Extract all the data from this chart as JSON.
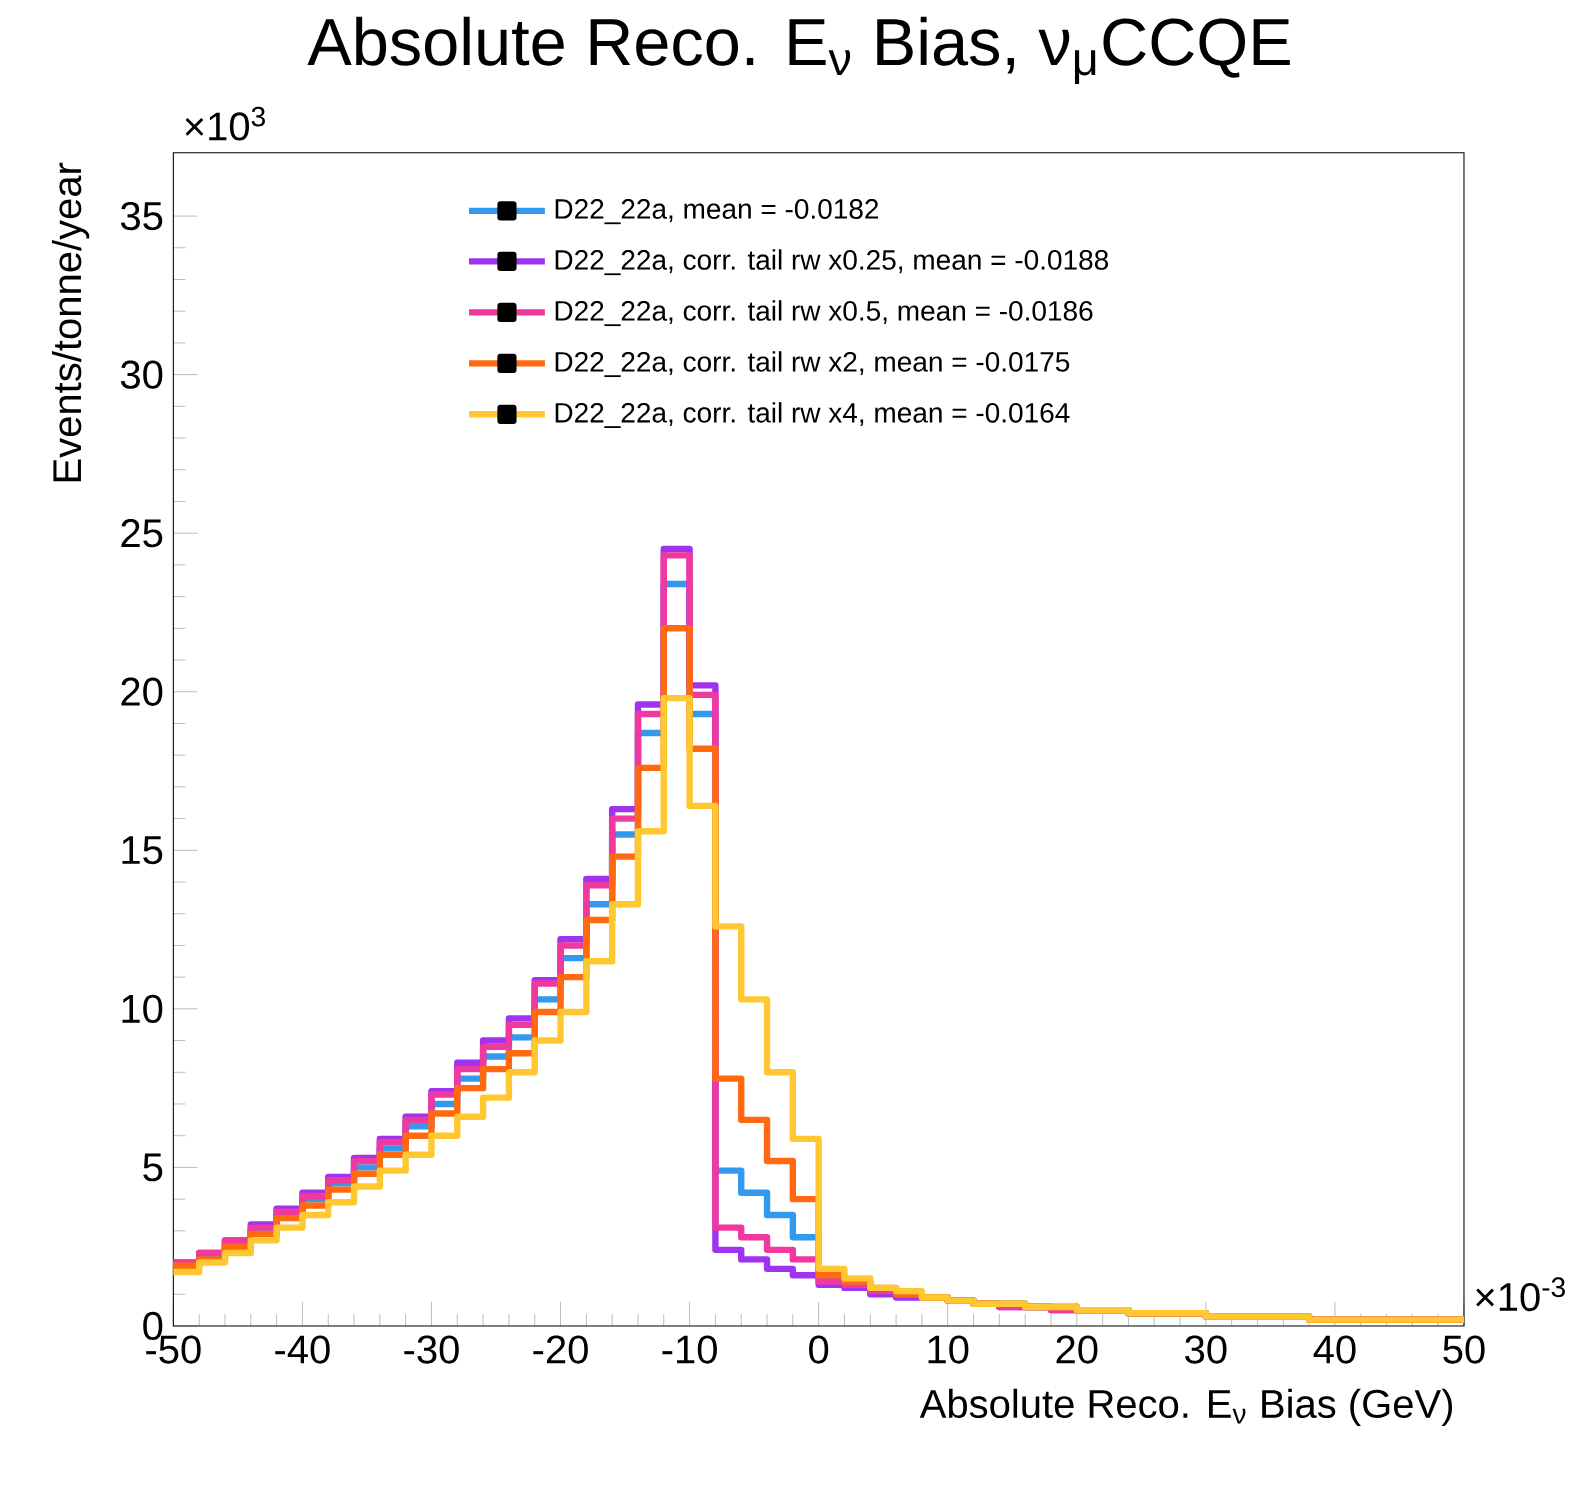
{
  "chart_data": {
    "type": "histogram",
    "title": "Absolute Reco. E$_{ν}$ Bias, ν$_{μ}$CCQE",
    "xlabel": "Absolute Reco. E$_{ν}$ Bias (GeV)",
    "ylabel": "Events/tonne/year",
    "annotations": [
      "×10$^{3}$",
      "×10$^{-3}$"
    ],
    "bins": [
      -50,
      -48,
      -46,
      -44,
      -42,
      -40,
      -38,
      -36,
      -34,
      -32,
      -30,
      -28,
      -26,
      -24,
      -22,
      -20,
      -18,
      -16,
      -14,
      -12,
      -10,
      -8,
      -6,
      -4,
      -2,
      0,
      2,
      4,
      6,
      8,
      10,
      12,
      14,
      16,
      18,
      20,
      22,
      24,
      26,
      28,
      30,
      32,
      34,
      36,
      38,
      40,
      42,
      44,
      46,
      48,
      50
    ],
    "series": [
      {
        "name": "D22_22a, mean = -0.0182",
        "color": "#3399ee",
        "values": [
          1.9,
          2.2,
          2.6,
          3.0,
          3.5,
          4.0,
          4.5,
          5.0,
          5.6,
          6.3,
          7.0,
          7.8,
          8.5,
          9.1,
          10.3,
          11.6,
          13.3,
          15.5,
          18.7,
          23.4,
          19.3,
          4.9,
          4.2,
          3.5,
          2.8,
          1.5,
          1.3,
          1.1,
          1.0,
          0.9,
          0.8,
          0.7,
          0.7,
          0.6,
          0.6,
          0.5,
          0.5,
          0.4,
          0.4,
          0.4,
          0.3,
          0.3,
          0.3,
          0.3,
          0.2,
          0.2,
          0.2,
          0.2,
          0.2,
          0.2
        ]
      },
      {
        "name": "D22_22a, corr. tail rw x0.25, mean = -0.0188",
        "color": "#a033f0",
        "values": [
          2.0,
          2.3,
          2.7,
          3.2,
          3.7,
          4.2,
          4.7,
          5.3,
          5.9,
          6.6,
          7.4,
          8.3,
          9.0,
          9.7,
          10.9,
          12.2,
          14.1,
          16.3,
          19.6,
          24.5,
          20.2,
          2.4,
          2.1,
          1.8,
          1.6,
          1.3,
          1.2,
          1.0,
          0.9,
          0.9,
          0.8,
          0.7,
          0.6,
          0.6,
          0.5,
          0.5,
          0.5,
          0.4,
          0.4,
          0.4,
          0.3,
          0.3,
          0.3,
          0.3,
          0.2,
          0.2,
          0.2,
          0.2,
          0.2,
          0.2
        ]
      },
      {
        "name": "D22_22a, corr. tail rw x0.5, mean = -0.0186",
        "color": "#f0399f",
        "values": [
          2.0,
          2.3,
          2.7,
          3.1,
          3.6,
          4.1,
          4.6,
          5.2,
          5.8,
          6.5,
          7.3,
          8.1,
          8.8,
          9.5,
          10.8,
          12.0,
          13.9,
          16.0,
          19.3,
          24.3,
          19.9,
          3.1,
          2.8,
          2.4,
          2.1,
          1.4,
          1.3,
          1.1,
          1.0,
          0.9,
          0.8,
          0.7,
          0.6,
          0.6,
          0.5,
          0.5,
          0.5,
          0.4,
          0.4,
          0.4,
          0.3,
          0.3,
          0.3,
          0.3,
          0.2,
          0.2,
          0.2,
          0.2,
          0.2,
          0.2
        ]
      },
      {
        "name": "D22_22a, corr. tail rw x2, mean = -0.0175",
        "color": "#ff6a10",
        "values": [
          1.9,
          2.1,
          2.5,
          2.9,
          3.4,
          3.8,
          4.3,
          4.8,
          5.4,
          6.0,
          6.7,
          7.5,
          8.1,
          8.6,
          9.9,
          11.0,
          12.8,
          14.8,
          17.6,
          22.0,
          18.2,
          7.8,
          6.5,
          5.2,
          4.0,
          1.6,
          1.4,
          1.2,
          1.0,
          0.9,
          0.8,
          0.7,
          0.7,
          0.6,
          0.6,
          0.5,
          0.5,
          0.4,
          0.4,
          0.4,
          0.3,
          0.3,
          0.3,
          0.3,
          0.2,
          0.2,
          0.2,
          0.2,
          0.2,
          0.2
        ]
      },
      {
        "name": "D22_22a, corr. tail rw x4, mean = -0.0164",
        "color": "#ffc730",
        "values": [
          1.7,
          2.0,
          2.3,
          2.7,
          3.1,
          3.5,
          3.9,
          4.4,
          4.9,
          5.4,
          6.0,
          6.6,
          7.2,
          8.0,
          9.0,
          9.9,
          11.5,
          13.3,
          15.6,
          19.8,
          16.4,
          12.6,
          10.3,
          8.0,
          5.9,
          1.8,
          1.5,
          1.2,
          1.1,
          0.9,
          0.8,
          0.7,
          0.7,
          0.6,
          0.6,
          0.5,
          0.5,
          0.4,
          0.4,
          0.4,
          0.3,
          0.3,
          0.3,
          0.3,
          0.2,
          0.2,
          0.2,
          0.2,
          0.2,
          0.2
        ]
      }
    ],
    "xlim": [
      -50,
      50
    ],
    "xticks": [
      -50,
      -40,
      -30,
      -20,
      -10,
      0,
      10,
      20,
      30,
      40,
      50
    ],
    "ylim": [
      0,
      37
    ],
    "yticks": [
      0,
      5,
      10,
      15,
      20,
      25,
      30,
      35
    ],
    "legend": "top",
    "marker": "square",
    "grid": false
  }
}
